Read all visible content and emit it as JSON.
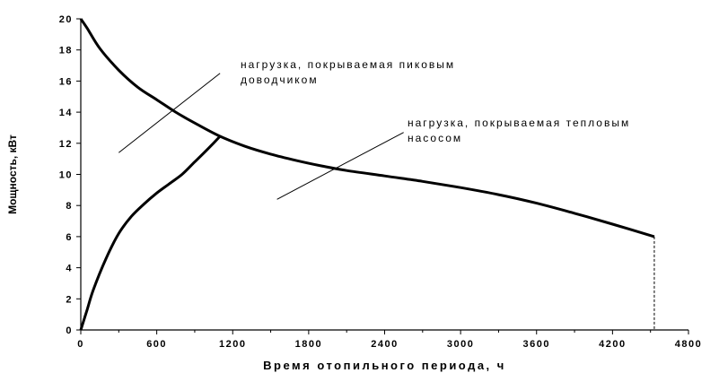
{
  "chart_data": {
    "type": "line",
    "xlabel": "Время отопильного периода, ч",
    "ylabel": "Мощность, кВт",
    "xlim": [
      0,
      4800
    ],
    "ylim": [
      0,
      20
    ],
    "x_ticks": [
      0,
      600,
      1200,
      1800,
      2400,
      3000,
      3600,
      4200,
      4800
    ],
    "y_ticks": [
      0,
      2,
      4,
      6,
      8,
      10,
      12,
      14,
      16,
      18,
      20
    ],
    "grid": false,
    "series": [
      {
        "points": [
          [
            0,
            20
          ],
          [
            50,
            19.4
          ],
          [
            150,
            18.1
          ],
          [
            300,
            16.7
          ],
          [
            450,
            15.6
          ],
          [
            600,
            14.8
          ],
          [
            750,
            14.0
          ],
          [
            900,
            13.3
          ],
          [
            1100,
            12.45
          ],
          [
            1300,
            11.8
          ],
          [
            1500,
            11.3
          ],
          [
            1700,
            10.9
          ],
          [
            1900,
            10.55
          ],
          [
            2100,
            10.25
          ],
          [
            2400,
            9.9
          ],
          [
            2700,
            9.55
          ],
          [
            3000,
            9.15
          ],
          [
            3300,
            8.7
          ],
          [
            3600,
            8.15
          ],
          [
            3900,
            7.5
          ],
          [
            4200,
            6.8
          ],
          [
            4530,
            6.0
          ]
        ]
      },
      {
        "points": [
          [
            0,
            0
          ],
          [
            50,
            1.3
          ],
          [
            100,
            2.6
          ],
          [
            200,
            4.6
          ],
          [
            300,
            6.2
          ],
          [
            400,
            7.3
          ],
          [
            500,
            8.1
          ],
          [
            600,
            8.8
          ],
          [
            700,
            9.4
          ],
          [
            800,
            10.0
          ],
          [
            900,
            10.8
          ],
          [
            1000,
            11.6
          ],
          [
            1100,
            12.45
          ]
        ]
      }
    ],
    "dashed_drop": {
      "x": 4530,
      "from": 6.0,
      "to": 0
    },
    "annotations": [
      {
        "lines": [
          "нагрузка, покрываемая пиковым",
          "доводчиком"
        ],
        "pointer_from": [
          300,
          11.4
        ],
        "pointer_to": [
          1100,
          16.5
        ]
      },
      {
        "lines": [
          "нагрузка, покрываемая тепловым",
          "насосом"
        ],
        "pointer_from": [
          1550,
          8.4
        ],
        "pointer_to": [
          2550,
          12.7
        ]
      }
    ]
  }
}
